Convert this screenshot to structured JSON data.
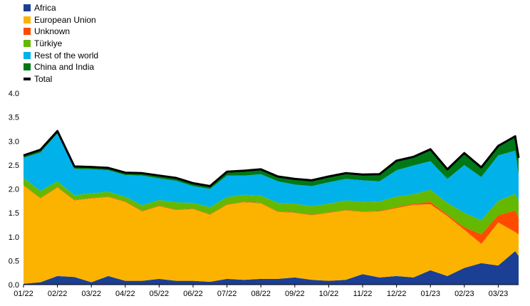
{
  "chart_data": {
    "type": "area",
    "stacked": true,
    "ylim": [
      0,
      4.0
    ],
    "yticks": [
      "0.0",
      "0.5",
      "1.0",
      "1.5",
      "2.0",
      "2.5",
      "3.0",
      "3.5",
      "4.0"
    ],
    "x_tick_labels": [
      "01/22",
      "02/22",
      "03/22",
      "04/22",
      "05/22",
      "06/22",
      "07/22",
      "08/22",
      "09/22",
      "10/22",
      "11/22",
      "12/22",
      "01/23",
      "02/23",
      "03/23"
    ],
    "x": [
      0,
      0.5,
      1,
      1.5,
      2,
      2.5,
      3,
      3.5,
      4,
      4.5,
      5,
      5.5,
      6,
      6.5,
      7,
      7.5,
      8,
      8.5,
      9,
      9.5,
      10,
      10.5,
      11,
      11.5,
      12,
      12.5,
      13,
      13.5,
      14,
      14.5,
      14.6
    ],
    "series": [
      {
        "name": "Africa",
        "color": "#1b3f94",
        "values": [
          0.02,
          0.05,
          0.18,
          0.16,
          0.05,
          0.18,
          0.08,
          0.08,
          0.12,
          0.08,
          0.08,
          0.06,
          0.12,
          0.1,
          0.12,
          0.12,
          0.15,
          0.1,
          0.08,
          0.1,
          0.22,
          0.15,
          0.18,
          0.15,
          0.3,
          0.18,
          0.35,
          0.45,
          0.4,
          0.7,
          0.6
        ]
      },
      {
        "name": "European Union",
        "color": "#fcb300",
        "values": [
          2.05,
          1.75,
          1.85,
          1.6,
          1.75,
          1.65,
          1.65,
          1.45,
          1.52,
          1.48,
          1.5,
          1.4,
          1.55,
          1.62,
          1.58,
          1.4,
          1.35,
          1.35,
          1.42,
          1.45,
          1.3,
          1.38,
          1.42,
          1.52,
          1.38,
          1.25,
          0.8,
          0.4,
          0.9,
          0.4,
          0.45
        ]
      },
      {
        "name": "Unknown",
        "color": "#ff4b00",
        "values": [
          0.01,
          0.01,
          0.01,
          0.01,
          0.01,
          0.01,
          0.01,
          0.01,
          0.01,
          0.01,
          0.01,
          0.01,
          0.01,
          0.01,
          0.01,
          0.01,
          0.01,
          0.01,
          0.01,
          0.01,
          0.01,
          0.01,
          0.02,
          0.02,
          0.05,
          0.03,
          0.05,
          0.2,
          0.15,
          0.45,
          0.35
        ]
      },
      {
        "name": "Türkiye",
        "color": "#65b800",
        "values": [
          0.15,
          0.15,
          0.12,
          0.1,
          0.1,
          0.1,
          0.1,
          0.12,
          0.12,
          0.15,
          0.12,
          0.15,
          0.15,
          0.15,
          0.15,
          0.18,
          0.18,
          0.18,
          0.18,
          0.2,
          0.2,
          0.2,
          0.22,
          0.2,
          0.25,
          0.25,
          0.3,
          0.3,
          0.3,
          0.35,
          0.35
        ]
      },
      {
        "name": "Rest of the world",
        "color": "#00b1ea",
        "values": [
          0.42,
          0.8,
          1.0,
          0.55,
          0.5,
          0.45,
          0.45,
          0.62,
          0.45,
          0.45,
          0.35,
          0.38,
          0.45,
          0.4,
          0.45,
          0.45,
          0.4,
          0.42,
          0.45,
          0.45,
          0.45,
          0.42,
          0.55,
          0.6,
          0.6,
          0.5,
          1.0,
          0.9,
          0.95,
          0.9,
          0.55
        ]
      },
      {
        "name": "China and India",
        "color": "#007816",
        "values": [
          0.05,
          0.06,
          0.05,
          0.05,
          0.05,
          0.05,
          0.05,
          0.05,
          0.06,
          0.06,
          0.06,
          0.06,
          0.08,
          0.1,
          0.1,
          0.1,
          0.12,
          0.12,
          0.12,
          0.12,
          0.12,
          0.15,
          0.2,
          0.18,
          0.25,
          0.2,
          0.25,
          0.2,
          0.2,
          0.3,
          0.35
        ]
      }
    ],
    "total": {
      "name": "Total",
      "color": "#000000",
      "values": [
        2.7,
        2.82,
        3.21,
        2.47,
        2.46,
        2.44,
        2.34,
        2.33,
        2.28,
        2.23,
        2.12,
        2.06,
        2.36,
        2.38,
        2.41,
        2.26,
        2.21,
        2.18,
        2.26,
        2.33,
        2.3,
        2.31,
        2.59,
        2.67,
        2.83,
        2.41,
        2.75,
        2.45,
        2.9,
        3.1,
        2.65
      ]
    },
    "legend": [
      "Africa",
      "European Union",
      "Unknown",
      "Türkiye",
      "Rest of the world",
      "China and India",
      "Total"
    ],
    "legend_position": "top-left",
    "grid": false
  }
}
